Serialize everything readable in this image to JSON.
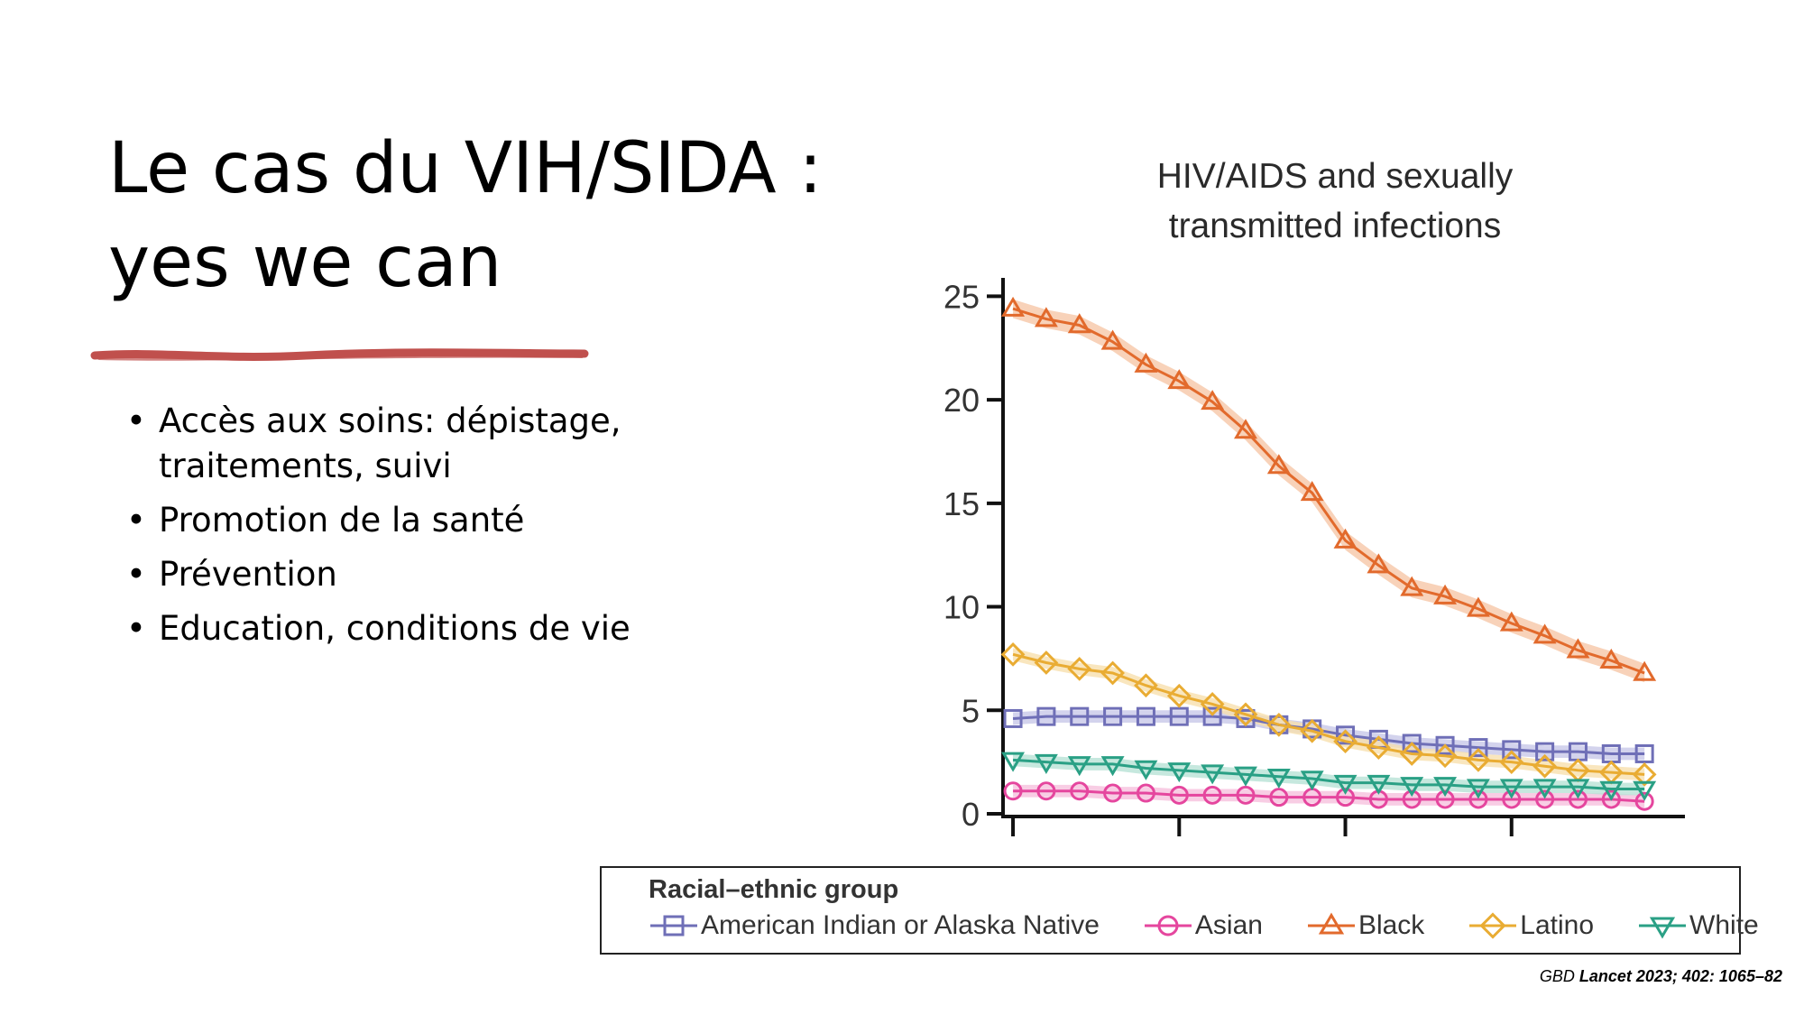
{
  "slide": {
    "title_line1": "Le cas du VIH/SIDA :",
    "title_line2": "yes we can",
    "bullets": [
      "Accès aux soins: dépistage, traitements, suivi",
      "Promotion de la santé",
      "Prévention",
      "Education, conditions de vie"
    ],
    "citation_prefix": "GBD ",
    "citation_ref": "Lancet 2023; 402: 1065–82",
    "underline_color": "#c0504d"
  },
  "chart_data": {
    "type": "line",
    "title": "HIV/AIDS and sexually transmitted infections",
    "title_lines": [
      "HIV/AIDS and sexually",
      "transmitted infections"
    ],
    "x": [
      1,
      2,
      3,
      4,
      5,
      6,
      7,
      8,
      9,
      10,
      11,
      12,
      13,
      14,
      15,
      16,
      17,
      18,
      19,
      20
    ],
    "xlim": [
      0.7,
      21
    ],
    "x_ticks": [
      1,
      6,
      11,
      16
    ],
    "ylim": [
      0,
      25.8
    ],
    "y_ticks": [
      0,
      5,
      10,
      15,
      20,
      25
    ],
    "y_tick_labels": [
      "0",
      "5",
      "10",
      "15",
      "20",
      "25"
    ],
    "xlabel": "",
    "ylabel": "",
    "legend_title": "Racial–ethnic group",
    "series": [
      {
        "name": "American Indian or Alaska Native",
        "marker": "square",
        "color": "#6f6fb7",
        "band": "#c8c8e8",
        "values": [
          4.6,
          4.7,
          4.7,
          4.7,
          4.7,
          4.7,
          4.7,
          4.6,
          4.3,
          4.1,
          3.8,
          3.6,
          3.4,
          3.3,
          3.2,
          3.1,
          3.0,
          3.0,
          2.9,
          2.9
        ]
      },
      {
        "name": "Asian",
        "marker": "circle",
        "color": "#e5469e",
        "band": "#f6c0dd",
        "values": [
          1.1,
          1.1,
          1.1,
          1.0,
          1.0,
          0.9,
          0.9,
          0.9,
          0.8,
          0.8,
          0.8,
          0.7,
          0.7,
          0.7,
          0.7,
          0.7,
          0.7,
          0.7,
          0.7,
          0.6
        ]
      },
      {
        "name": "Black",
        "marker": "triangle-up",
        "color": "#e26a2c",
        "band": "#f6c7a8",
        "values": [
          24.4,
          23.9,
          23.6,
          22.8,
          21.7,
          20.9,
          19.9,
          18.5,
          16.8,
          15.5,
          13.2,
          12.0,
          10.9,
          10.5,
          9.9,
          9.2,
          8.6,
          7.9,
          7.4,
          6.8
        ]
      },
      {
        "name": "Latino",
        "marker": "diamond",
        "color": "#e9ac33",
        "band": "#f8e0ae",
        "values": [
          7.7,
          7.3,
          7.0,
          6.8,
          6.2,
          5.7,
          5.3,
          4.8,
          4.3,
          4.0,
          3.5,
          3.2,
          2.9,
          2.8,
          2.6,
          2.5,
          2.3,
          2.1,
          2.0,
          1.9
        ]
      },
      {
        "name": "White",
        "marker": "triangle-down",
        "color": "#2aa085",
        "band": "#b8e2d6",
        "values": [
          2.6,
          2.5,
          2.4,
          2.4,
          2.2,
          2.1,
          2.0,
          1.9,
          1.8,
          1.7,
          1.5,
          1.5,
          1.4,
          1.4,
          1.3,
          1.3,
          1.3,
          1.3,
          1.2,
          1.2
        ]
      }
    ]
  }
}
